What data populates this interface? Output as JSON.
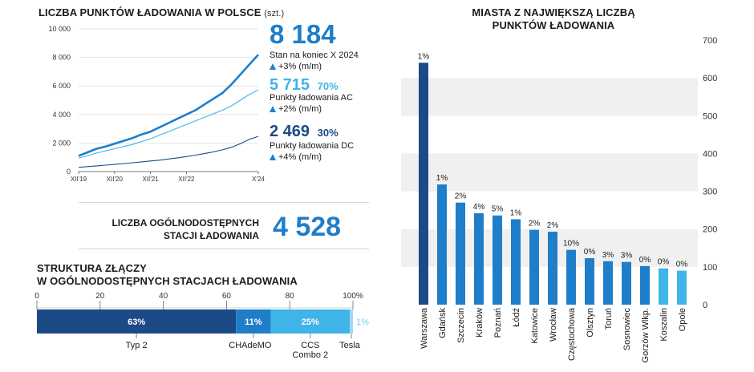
{
  "line_panel": {
    "title": "LICZBA PUNKTÓW ŁADOWANIA W POLSCE",
    "unit": "(szt.)",
    "total": {
      "value": "8 184",
      "label": "Stan na koniec X 2024",
      "change": "+3% (m/m)"
    },
    "ac": {
      "value": "5 715",
      "share": "70%",
      "label": "Punkty ładowania AC",
      "change": "+2% (m/m)"
    },
    "dc": {
      "value": "2 469",
      "share": "30%",
      "label": "Punkty ładowania DC",
      "change": "+4% (m/m)"
    }
  },
  "stations": {
    "label": "LICZBA OGÓLNODOSTĘPNYCH STACJI ŁADOWANIA",
    "value": "4 528"
  },
  "connectors": {
    "title_line1": "STRUKTURA ZŁĄCZY",
    "title_line2": "W OGÓLNODOSTĘPNYCH STACJACH ŁADOWANIA"
  },
  "cities_panel": {
    "title_line1": "MIASTA Z NAJWIĘKSZĄ LICZBĄ",
    "title_line2": "PUNKTÓW ŁADOWANIA"
  },
  "colors": {
    "dark": "#1c4a86",
    "mid": "#1f7ec9",
    "light": "#3fb4e8",
    "lighter": "#9fd8f4",
    "grid": "#ececec"
  },
  "chart_data": [
    {
      "type": "line",
      "x_ticks": [
        "XII'19",
        "XII'20",
        "XII'21",
        "XII'22",
        "X'24"
      ],
      "y_ticks": [
        "0",
        "2 000",
        "4 000",
        "6 000",
        "8 000",
        "10 000"
      ],
      "ylim": [
        0,
        10000
      ],
      "series": [
        {
          "name": "Stan na koniec X 2024",
          "color": "#1f7ec9",
          "values": [
            1100,
            1350,
            1600,
            1750,
            1950,
            2150,
            2350,
            2600,
            2800,
            3100,
            3400,
            3700,
            4000,
            4300,
            4700,
            5100,
            5500,
            6100,
            6800,
            7500,
            8184
          ]
        },
        {
          "name": "Punkty ładowania AC",
          "color": "#3fb4e8",
          "values": [
            950,
            1100,
            1300,
            1450,
            1600,
            1750,
            1900,
            2100,
            2300,
            2550,
            2800,
            3050,
            3300,
            3550,
            3800,
            4050,
            4300,
            4600,
            5000,
            5400,
            5715
          ]
        },
        {
          "name": "Punkty ładowania DC",
          "color": "#1c4a86",
          "values": [
            300,
            350,
            400,
            450,
            500,
            560,
            620,
            680,
            740,
            800,
            880,
            960,
            1050,
            1150,
            1260,
            1380,
            1520,
            1700,
            1950,
            2250,
            2469
          ]
        }
      ]
    },
    {
      "type": "bar",
      "orientation": "horizontal-stacked",
      "x_ticks": [
        "0",
        "20",
        "40",
        "60",
        "80",
        "100%"
      ],
      "segments": [
        {
          "name": "Typ 2",
          "value": 63,
          "label": "63%",
          "color": "#1c4a86"
        },
        {
          "name": "CHAdeMO",
          "value": 11,
          "label": "11%",
          "color": "#1f7ec9"
        },
        {
          "name": "CCS Combo 2",
          "value": 25,
          "label": "25%",
          "color": "#3fb4e8"
        },
        {
          "name": "Tesla",
          "value": 1,
          "label": "1%",
          "color": "#9fd8f4"
        }
      ]
    },
    {
      "type": "bar",
      "categories": [
        "Warszawa",
        "Gdańsk",
        "Szczecin",
        "Kraków",
        "Poznań",
        "Łódź",
        "Katowice",
        "Wrocław",
        "Częstochowa",
        "Olsztyn",
        "Toruń",
        "Sosnowiec",
        "Gorzów Wlkp.",
        "Koszalin",
        "Opole"
      ],
      "values": [
        640,
        318,
        270,
        242,
        236,
        226,
        198,
        193,
        145,
        123,
        115,
        113,
        102,
        96,
        90
      ],
      "labels": [
        "1%",
        "1%",
        "2%",
        "4%",
        "5%",
        "1%",
        "2%",
        "2%",
        "10%",
        "0%",
        "3%",
        "3%",
        "0%",
        "0%",
        "0%"
      ],
      "ylim": [
        0,
        700
      ],
      "y_ticks": [
        "0",
        "100",
        "200",
        "300",
        "400",
        "500",
        "600",
        "700"
      ]
    }
  ]
}
